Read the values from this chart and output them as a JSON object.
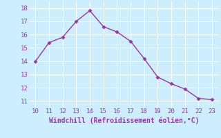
{
  "x": [
    10,
    11,
    12,
    13,
    14,
    15,
    16,
    17,
    18,
    19,
    20,
    21,
    22,
    23
  ],
  "y": [
    14.0,
    15.4,
    15.8,
    17.0,
    17.8,
    16.6,
    16.2,
    15.5,
    14.2,
    12.8,
    12.3,
    11.9,
    11.2,
    11.1
  ],
  "line_color": "#9933aa",
  "marker_color": "#9933aa",
  "bg_color": "#cceeff",
  "grid_color": "#ffffff",
  "xlabel": "Windchill (Refroidissement éolien,°C)",
  "xlabel_color": "#9933aa",
  "tick_color": "#9933aa",
  "xlim": [
    9.5,
    23.5
  ],
  "ylim": [
    10.5,
    18.5
  ],
  "xticks": [
    10,
    11,
    12,
    13,
    14,
    15,
    16,
    17,
    18,
    19,
    20,
    21,
    22,
    23
  ],
  "yticks": [
    11,
    12,
    13,
    14,
    15,
    16,
    17,
    18
  ],
  "figsize": [
    3.2,
    2.0
  ],
  "dpi": 100
}
